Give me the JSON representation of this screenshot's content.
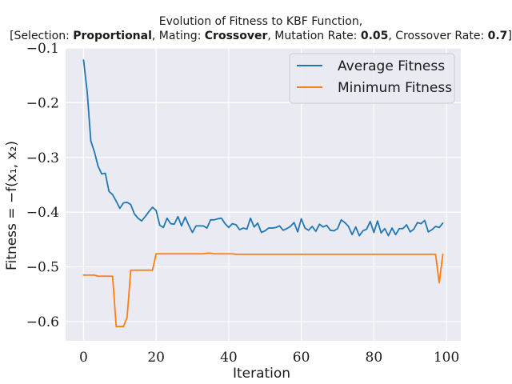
{
  "chart_data": {
    "type": "line",
    "title_line1": "Evolution of Fitness to KBF Function,",
    "title_line2_parts": [
      {
        "text": "[Selection: ",
        "bold": false
      },
      {
        "text": "Proportional",
        "bold": true
      },
      {
        "text": ", Mating: ",
        "bold": false
      },
      {
        "text": "Crossover",
        "bold": true
      },
      {
        "text": ", Mutation Rate: ",
        "bold": false
      },
      {
        "text": "0.05",
        "bold": true
      },
      {
        "text": ", Crossover Rate: ",
        "bold": false
      },
      {
        "text": "0.7",
        "bold": true
      },
      {
        "text": "]",
        "bold": false
      }
    ],
    "xlabel": "Iteration",
    "ylabel": "Fitness = −f(x₁, x₂)",
    "xlim": [
      -4.95,
      103.95
    ],
    "ylim": [
      -0.635,
      -0.1
    ],
    "xticks": [
      0,
      20,
      40,
      60,
      80,
      100
    ],
    "yticks": [
      -0.1,
      -0.2,
      -0.3,
      -0.4,
      -0.5,
      -0.6
    ],
    "xtick_labels": [
      "0",
      "20",
      "40",
      "60",
      "80",
      "100"
    ],
    "ytick_labels": [
      "−0.1",
      "−0.2",
      "−0.3",
      "−0.4",
      "−0.5",
      "−0.6"
    ],
    "grid": true,
    "legend_position": "top-right",
    "series": [
      {
        "name": "Average Fitness",
        "color": "#1f77b4",
        "x": [
          0,
          1,
          2,
          3,
          4,
          5,
          6,
          7,
          8,
          9,
          10,
          11,
          12,
          13,
          14,
          15,
          16,
          17,
          18,
          19,
          20,
          21,
          22,
          23,
          24,
          25,
          26,
          27,
          28,
          29,
          30,
          31,
          32,
          33,
          34,
          35,
          36,
          37,
          38,
          39,
          40,
          41,
          42,
          43,
          44,
          45,
          46,
          47,
          48,
          49,
          50,
          51,
          52,
          53,
          54,
          55,
          56,
          57,
          58,
          59,
          60,
          61,
          62,
          63,
          64,
          65,
          66,
          67,
          68,
          69,
          70,
          71,
          72,
          73,
          74,
          75,
          76,
          77,
          78,
          79,
          80,
          81,
          82,
          83,
          84,
          85,
          86,
          87,
          88,
          89,
          90,
          91,
          92,
          93,
          94,
          95,
          96,
          97,
          98,
          99
        ],
        "values": [
          -0.122,
          -0.18,
          -0.27,
          -0.29,
          -0.316,
          -0.33,
          -0.329,
          -0.362,
          -0.368,
          -0.38,
          -0.393,
          -0.383,
          -0.382,
          -0.386,
          -0.403,
          -0.411,
          -0.416,
          -0.408,
          -0.399,
          -0.391,
          -0.397,
          -0.424,
          -0.428,
          -0.411,
          -0.421,
          -0.422,
          -0.408,
          -0.425,
          -0.409,
          -0.424,
          -0.437,
          -0.425,
          -0.425,
          -0.425,
          -0.429,
          -0.414,
          -0.414,
          -0.412,
          -0.411,
          -0.421,
          -0.428,
          -0.421,
          -0.423,
          -0.432,
          -0.429,
          -0.431,
          -0.411,
          -0.427,
          -0.42,
          -0.437,
          -0.434,
          -0.429,
          -0.429,
          -0.428,
          -0.425,
          -0.433,
          -0.43,
          -0.426,
          -0.419,
          -0.436,
          -0.412,
          -0.429,
          -0.433,
          -0.426,
          -0.435,
          -0.422,
          -0.427,
          -0.424,
          -0.433,
          -0.434,
          -0.43,
          -0.414,
          -0.419,
          -0.426,
          -0.441,
          -0.427,
          -0.443,
          -0.434,
          -0.431,
          -0.417,
          -0.437,
          -0.416,
          -0.438,
          -0.43,
          -0.443,
          -0.429,
          -0.441,
          -0.43,
          -0.43,
          -0.423,
          -0.436,
          -0.431,
          -0.419,
          -0.421,
          -0.415,
          -0.436,
          -0.432,
          -0.426,
          -0.428,
          -0.42
        ]
      },
      {
        "name": "Minimum Fitness",
        "color": "#ff7f0e",
        "x": [
          0,
          1,
          2,
          3,
          4,
          5,
          6,
          7,
          8,
          9,
          10,
          11,
          12,
          13,
          14,
          15,
          16,
          17,
          18,
          19,
          20,
          21,
          22,
          23,
          24,
          25,
          26,
          27,
          28,
          29,
          30,
          31,
          32,
          33,
          34,
          35,
          36,
          37,
          38,
          39,
          40,
          41,
          42,
          43,
          44,
          45,
          46,
          47,
          48,
          49,
          50,
          51,
          52,
          53,
          54,
          55,
          56,
          57,
          58,
          59,
          60,
          61,
          62,
          63,
          64,
          65,
          66,
          67,
          68,
          69,
          70,
          71,
          72,
          73,
          74,
          75,
          76,
          77,
          78,
          79,
          80,
          81,
          82,
          83,
          84,
          85,
          86,
          87,
          88,
          89,
          90,
          91,
          92,
          93,
          94,
          95,
          96,
          97,
          98,
          99
        ],
        "values": [
          -0.515,
          -0.515,
          -0.515,
          -0.515,
          -0.517,
          -0.517,
          -0.517,
          -0.517,
          -0.517,
          -0.609,
          -0.609,
          -0.609,
          -0.592,
          -0.506,
          -0.506,
          -0.506,
          -0.506,
          -0.506,
          -0.506,
          -0.506,
          -0.476,
          -0.476,
          -0.476,
          -0.476,
          -0.476,
          -0.476,
          -0.476,
          -0.476,
          -0.476,
          -0.476,
          -0.476,
          -0.476,
          -0.476,
          -0.476,
          -0.475,
          -0.475,
          -0.476,
          -0.476,
          -0.476,
          -0.476,
          -0.476,
          -0.476,
          -0.477,
          -0.477,
          -0.477,
          -0.477,
          -0.477,
          -0.477,
          -0.477,
          -0.477,
          -0.477,
          -0.477,
          -0.477,
          -0.477,
          -0.477,
          -0.477,
          -0.477,
          -0.477,
          -0.477,
          -0.477,
          -0.477,
          -0.477,
          -0.477,
          -0.477,
          -0.477,
          -0.477,
          -0.477,
          -0.477,
          -0.477,
          -0.477,
          -0.477,
          -0.477,
          -0.477,
          -0.477,
          -0.477,
          -0.477,
          -0.477,
          -0.477,
          -0.477,
          -0.477,
          -0.477,
          -0.477,
          -0.477,
          -0.477,
          -0.477,
          -0.477,
          -0.477,
          -0.477,
          -0.477,
          -0.477,
          -0.477,
          -0.477,
          -0.477,
          -0.477,
          -0.477,
          -0.477,
          -0.477,
          -0.477,
          -0.529,
          -0.477
        ]
      }
    ]
  },
  "colors": {
    "plot_background": "#eaeaf2",
    "grid": "#ffffff"
  }
}
